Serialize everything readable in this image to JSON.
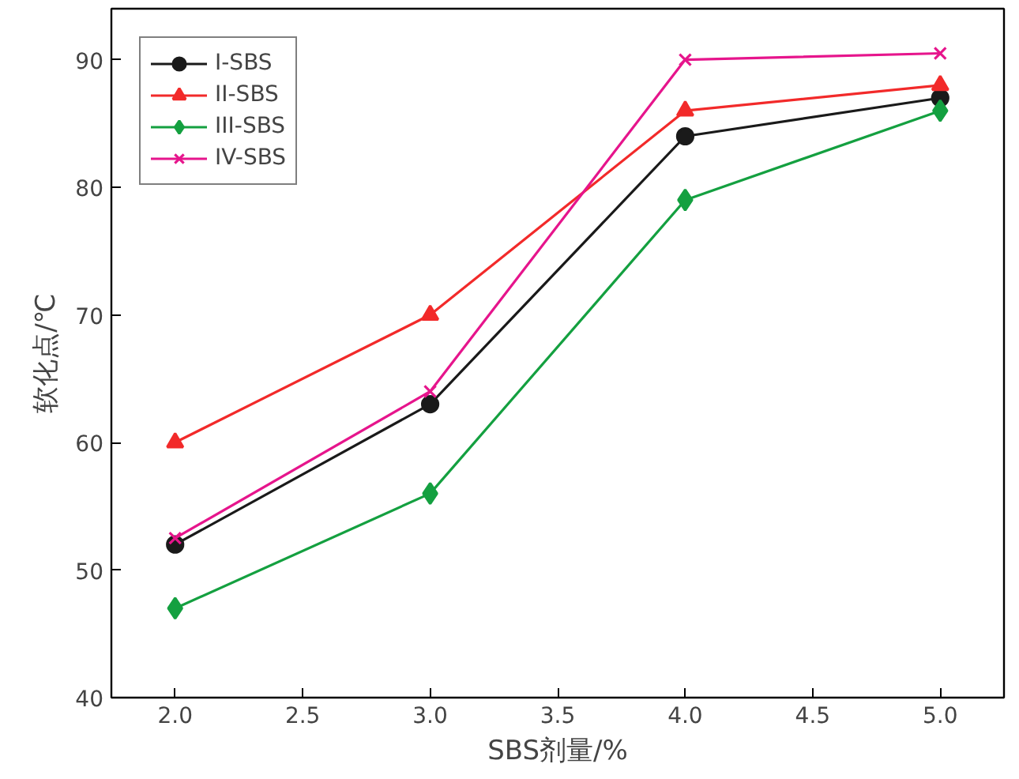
{
  "chart_data": {
    "type": "line",
    "xlabel": "SBS剂量/%",
    "ylabel": "软化点/℃",
    "x": [
      2.0,
      3.0,
      4.0,
      5.0
    ],
    "series": [
      {
        "name": "I-SBS",
        "color": "#1a1a1a",
        "marker": "circle",
        "values": [
          52,
          63,
          84,
          87
        ]
      },
      {
        "name": "II-SBS",
        "color": "#f22a2a",
        "marker": "triangle",
        "values": [
          60,
          70,
          86,
          88
        ]
      },
      {
        "name": "III-SBS",
        "color": "#14a040",
        "marker": "diamond",
        "values": [
          47,
          56,
          79,
          86
        ]
      },
      {
        "name": "IV-SBS",
        "color": "#e6158c",
        "marker": "cross",
        "values": [
          52.5,
          64,
          90,
          90.5
        ]
      }
    ],
    "xlim": [
      1.75,
      5.25
    ],
    "xticks": [
      {
        "value": 2.0,
        "label": "2.0"
      },
      {
        "value": 2.5,
        "label": "2.5"
      },
      {
        "value": 3.0,
        "label": "3.0"
      },
      {
        "value": 3.5,
        "label": "3.5"
      },
      {
        "value": 4.0,
        "label": "4.0"
      },
      {
        "value": 4.5,
        "label": "4.5"
      },
      {
        "value": 5.0,
        "label": "5.0"
      }
    ],
    "ylim": [
      40,
      94
    ],
    "yticks": [
      40,
      50,
      60,
      70,
      80,
      90
    ],
    "grid": false,
    "legend": "top left",
    "line_style": "solid"
  }
}
